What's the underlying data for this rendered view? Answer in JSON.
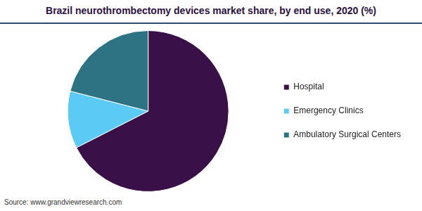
{
  "chart_data": {
    "type": "pie",
    "title": "Brazil neurothrombectomy devices market share, by end use, 2020 (%)",
    "source": "Source: www.grandviewresearch.com",
    "categories": [
      "Hospital",
      "Emergency Clinics",
      "Ambulatory Surgical Centers"
    ],
    "values": [
      67.5,
      11.5,
      21
    ],
    "colors": [
      "#3a1048",
      "#5bcbf5",
      "#2d7383"
    ],
    "legend": "right"
  }
}
